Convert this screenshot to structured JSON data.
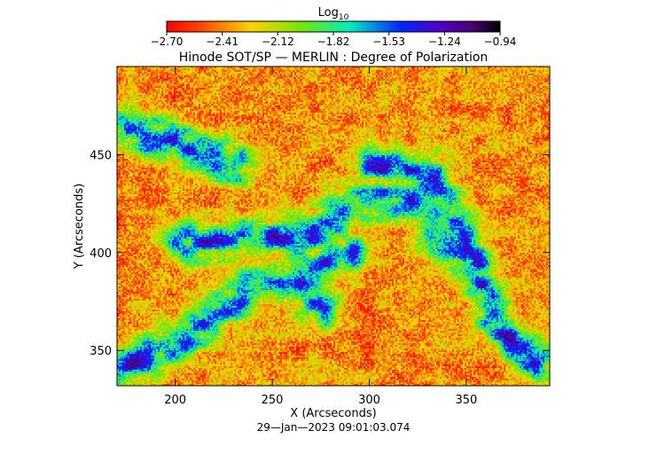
{
  "chart_data": {
    "type": "heatmap",
    "title": "Hinode SOT/SP — MERLIN : Degree of Polarization",
    "xlabel": "X (Arcseconds)",
    "ylabel": "Y (Arcseconds)",
    "timestamp": "29—Jan—2023 09:01:03.074",
    "xlim": [
      170,
      393
    ],
    "ylim": [
      332,
      495
    ],
    "x_ticks": [
      200,
      250,
      300,
      350
    ],
    "y_ticks": [
      350,
      400,
      450
    ],
    "colorbar": {
      "label_base": "Log",
      "label_sub": "10",
      "range": [
        -2.7,
        -0.94
      ],
      "ticks": [
        "−2.70",
        "−2.41",
        "−2.12",
        "−1.82",
        "−1.53",
        "−1.24",
        "−0.94"
      ],
      "colormap": "rainbow (red → yellow → green → cyan → blue → violet → black)"
    },
    "grid": false,
    "legend": "none"
  }
}
